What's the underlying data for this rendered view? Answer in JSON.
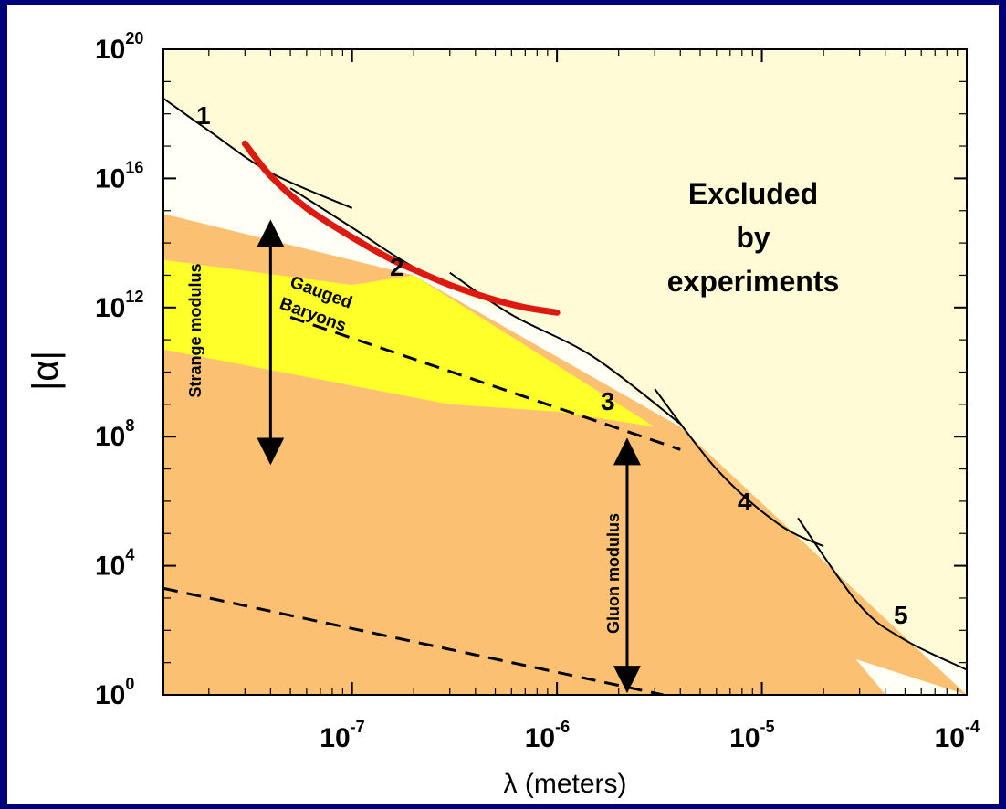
{
  "chart_data": {
    "type": "area",
    "xlabel": "λ (meters)",
    "ylabel": "|α|",
    "xscale": "log",
    "yscale": "log",
    "xlim": [
      1.2e-08,
      0.0001
    ],
    "ylim": [
      1,
      1e+20
    ],
    "x_ticks": [
      {
        "value": 1e-07,
        "base": "10",
        "exp": "-7"
      },
      {
        "value": 1e-06,
        "base": "10",
        "exp": "-6"
      },
      {
        "value": 1e-05,
        "base": "10",
        "exp": "-5"
      },
      {
        "value": 0.0001,
        "base": "10",
        "exp": "-4"
      }
    ],
    "y_ticks": [
      {
        "value": 1,
        "base": "10",
        "exp": "0"
      },
      {
        "value": 10000.0,
        "base": "10",
        "exp": "4"
      },
      {
        "value": 100000000.0,
        "base": "10",
        "exp": "8"
      },
      {
        "value": 1000000000000.0,
        "base": "10",
        "exp": "12"
      },
      {
        "value": 1e+16,
        "base": "10",
        "exp": "16"
      },
      {
        "value": 1e+20,
        "base": "10",
        "exp": "20"
      }
    ],
    "excluded_region": {
      "label_lines": [
        "Excluded",
        "by",
        "experiments"
      ],
      "color": "#fefbd6",
      "boundary": [
        [
          1.2e-08,
          3e+18
        ],
        [
          2e-08,
          3e+17
        ],
        [
          3e-08,
          5e+16
        ],
        [
          5e-08,
          5000000000000000.0
        ],
        [
          7e-08,
          1100000000000000.0
        ],
        [
          1e-07,
          250000000000000.0
        ],
        [
          1.5e-07,
          40000000000000.0
        ],
        [
          2e-07,
          13000000000000.0
        ],
        [
          3e-07,
          4000000000000.0
        ],
        [
          4e-07,
          1700000000000.0
        ],
        [
          6e-07,
          600000000000.0
        ],
        [
          1e-06,
          160000000000.0
        ],
        [
          1.5e-06,
          30000000000.0
        ],
        [
          2e-06,
          6000000000.0
        ],
        [
          3e-06,
          700000000.0
        ],
        [
          4e-06,
          250000000.0
        ],
        [
          6e-06,
          10000000.0
        ],
        [
          1e-05,
          400000.0
        ],
        [
          1.5e-05,
          70000.0
        ],
        [
          2e-05,
          10000.0
        ],
        [
          3e-05,
          600.0
        ],
        [
          5e-05,
          50.0
        ],
        [
          0.0001,
          6
        ]
      ]
    },
    "constraint_segments": [
      {
        "label": "1",
        "points": [
          [
            1.2e-08,
            3e+18
          ],
          [
            2e-08,
            3e+17
          ],
          [
            4e-08,
            1.5e+16
          ],
          [
            1e-07,
            1200000000000000.0
          ]
        ]
      },
      {
        "label": "2",
        "points": [
          [
            5e-08,
            5000000000000000.0
          ],
          [
            1e-07,
            300000000000000.0
          ],
          [
            2e-07,
            18000000000000.0
          ],
          [
            4e-07,
            2800000000000.0
          ]
        ]
      },
      {
        "label": "3",
        "points": [
          [
            3e-07,
            12000000000000.0
          ],
          [
            6e-07,
            600000000000.0
          ],
          [
            1.5e-06,
            30000000000.0
          ],
          [
            4e-06,
            250000000.0
          ]
        ]
      },
      {
        "label": "4",
        "points": [
          [
            3e-06,
            3000000000.0
          ],
          [
            6e-06,
            10000000.0
          ],
          [
            1.2e-05,
            200000.0
          ],
          [
            2e-05,
            40000.0
          ]
        ]
      },
      {
        "label": "5",
        "points": [
          [
            1.5e-05,
            300000.0
          ],
          [
            3e-05,
            600.0
          ],
          [
            5e-05,
            50.0
          ],
          [
            0.0001,
            6
          ]
        ]
      }
    ],
    "red_curve": {
      "color": "#dd1a12",
      "points": [
        [
          3e-08,
          1.2e+17
        ],
        [
          4e-08,
          1.2e+16
        ],
        [
          6e-08,
          1200000000000000.0
        ],
        [
          1e-07,
          150000000000000.0
        ],
        [
          1.5e-07,
          35000000000000.0
        ],
        [
          2e-07,
          15000000000000.0
        ],
        [
          3e-07,
          5000000000000.0
        ],
        [
          5e-07,
          1700000000000.0
        ],
        [
          7e-07,
          1000000000000.0
        ],
        [
          1e-06,
          700000000000.0
        ]
      ]
    },
    "strange_band": {
      "label": "Strange modulus",
      "color": "#fcc073",
      "top": [
        [
          1.2e-08,
          800000000000000.0
        ],
        [
          2e-07,
          10000000000000.0
        ],
        [
          4e-06,
          200000000.0
        ]
      ],
      "bottom": [
        [
          1.2e-08,
          100000000.0
        ],
        [
          0.0001,
          1
        ]
      ]
    },
    "gauged_baryons": {
      "label_lines": [
        "Gauged",
        "Baryons"
      ],
      "color": "#ffff2a",
      "top": [
        [
          1.2e-08,
          30000000000000.0
        ],
        [
          1e-07,
          5000000000000.0
        ],
        [
          2e-07,
          10000000000000.0
        ],
        [
          3e-06,
          200000000.0
        ]
      ],
      "bottom": [
        [
          1.2e-08,
          50000000000.0
        ],
        [
          3e-07,
          1000000000.0
        ],
        [
          1e-06,
          600000000.0
        ],
        [
          3e-06,
          200000000.0
        ]
      ]
    },
    "gluon_band": {
      "label": "Gluon modulus",
      "color": "#fcc073",
      "top": [
        [
          1.2e-08,
          100000000.0
        ],
        [
          4e-06,
          40000000.0
        ]
      ],
      "bottom": [
        [
          1.2e-08,
          0.4
        ],
        [
          0.0001,
          0.001
        ]
      ]
    },
    "dashed_lines": [
      {
        "points": [
          [
            5e-08,
            500000000000.0
          ],
          [
            4e-06,
            40000000.0
          ]
        ]
      },
      {
        "points": [
          [
            1.2e-08,
            2000.0
          ],
          [
            3.3e-06,
            1
          ]
        ]
      }
    ],
    "arrows": [
      {
        "label": "Strange modulus",
        "x": 4e-08,
        "y_from": 200000000000000.0,
        "y_to": 35000000.0
      },
      {
        "label": "Gluon modulus",
        "x": 2.2e-06,
        "y_from": 35000000.0,
        "y_to": 3
      }
    ]
  }
}
